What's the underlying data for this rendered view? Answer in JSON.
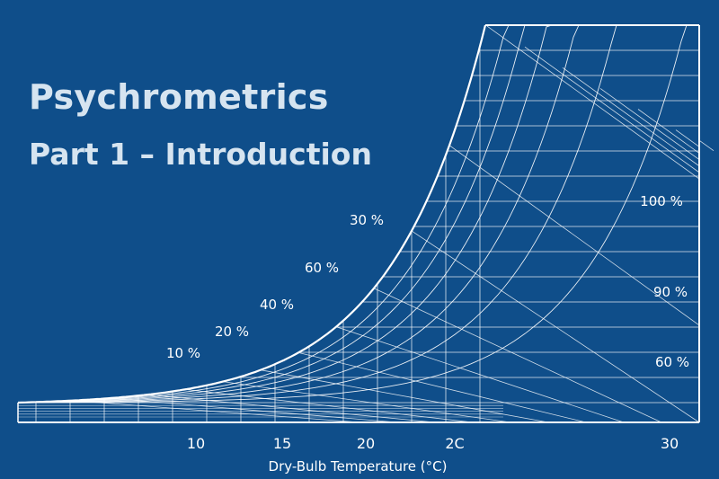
{
  "title": "Psychrometrics",
  "subtitle": "Part 1 – Introduction",
  "colors": {
    "background": "#0f4e8a",
    "lines": "#ffffff",
    "title": "#d6e4f0"
  },
  "chart_data": {
    "type": "psychrometric chart",
    "xlabel": "Dry-Bulb Temperature (°C)",
    "x_ticks": [
      "10",
      "15",
      "20",
      "2C",
      "30"
    ],
    "saturation_curve_labels": [
      "10 %",
      "20 %",
      "40 %",
      "60 %",
      "30 %"
    ],
    "right_edge_labels": [
      "100 %",
      "90 %",
      "60 %"
    ],
    "grid": true
  }
}
